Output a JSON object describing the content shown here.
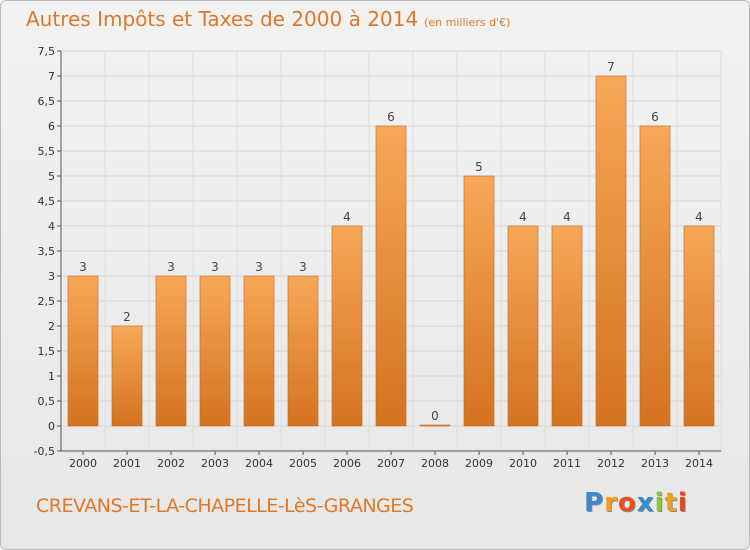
{
  "chart_data": {
    "type": "bar",
    "title": "Autres Impôts et Taxes de 2000 à 2014",
    "subtitle": "(en milliers d'€)",
    "categories": [
      "2000",
      "2001",
      "2002",
      "2003",
      "2004",
      "2005",
      "2006",
      "2007",
      "2008",
      "2009",
      "2010",
      "2011",
      "2012",
      "2013",
      "2014"
    ],
    "values": [
      3,
      2,
      3,
      3,
      3,
      3,
      4,
      6,
      0,
      5,
      4,
      4,
      7,
      6,
      4
    ],
    "data_labels": [
      "3",
      "2",
      "3",
      "3",
      "3",
      "3",
      "4",
      "6",
      "0",
      "5",
      "4",
      "4",
      "7",
      "6",
      "4"
    ],
    "ylim": [
      -0.5,
      7.5
    ],
    "yticks": [
      -0.5,
      0,
      0.5,
      1,
      1.5,
      2,
      2.5,
      3,
      3.5,
      4,
      4.5,
      5,
      5.5,
      6,
      6.5,
      7,
      7.5
    ],
    "ytick_labels": [
      "-0,5",
      "0",
      "0,5",
      "1",
      "1,5",
      "2",
      "2,5",
      "3",
      "3,5",
      "4",
      "4,5",
      "5",
      "5,5",
      "6",
      "6,5",
      "7",
      "7,5"
    ],
    "xlabel": "",
    "ylabel": "",
    "grid": true,
    "bar_color": "#f19a3d",
    "bar_color_dark": "#d4701e"
  },
  "footer": {
    "commune": "CREVANS-ET-LA-CHAPELLE-LèS-GRANGES",
    "logo_letters": [
      "P",
      "r",
      "o",
      "x",
      "i",
      "t",
      "i"
    ],
    "logo_colors": [
      "#3d88c8",
      "#f39c1f",
      "#e8511c",
      "#2f8fd0",
      "#8cc63e",
      "#f0a11c",
      "#e04a1a"
    ]
  }
}
